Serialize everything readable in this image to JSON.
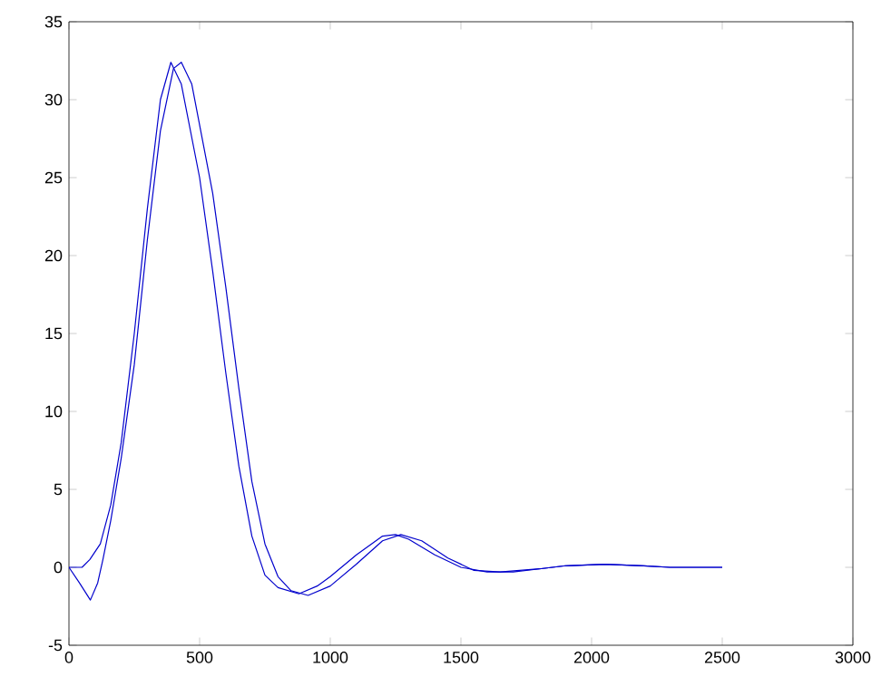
{
  "chart_data": {
    "type": "line",
    "xlim": [
      0,
      3000
    ],
    "ylim": [
      -5,
      35
    ],
    "xticks": [
      0,
      500,
      1000,
      1500,
      2000,
      2500,
      3000
    ],
    "yticks": [
      -5,
      0,
      5,
      10,
      15,
      20,
      25,
      30,
      35
    ],
    "marker": "none",
    "line_style": "solid",
    "series": [
      {
        "color": "#0000cc",
        "x": [
          0,
          50,
          80,
          120,
          160,
          200,
          250,
          300,
          350,
          390,
          430,
          500,
          550,
          600,
          650,
          700,
          750,
          800,
          880,
          950,
          1000,
          1100,
          1200,
          1250,
          1300,
          1400,
          1500,
          1600,
          1700,
          1800,
          1900,
          2050,
          2200,
          2300,
          2500
        ],
        "values": [
          0,
          0,
          0.5,
          1.5,
          4,
          8,
          15,
          23,
          30,
          32.4,
          31,
          25,
          19,
          12.5,
          6.5,
          2,
          -0.5,
          -1.3,
          -1.7,
          -1.2,
          -0.6,
          0.8,
          2,
          2.1,
          1.8,
          0.8,
          0,
          -0.3,
          -0.3,
          -0.1,
          0.1,
          0.2,
          0.1,
          0,
          0
        ]
      },
      {
        "color": "#0000cc",
        "x": [
          0,
          40,
          82,
          110,
          130,
          160,
          200,
          250,
          300,
          350,
          400,
          430,
          470,
          550,
          600,
          650,
          700,
          750,
          800,
          850,
          915,
          1000,
          1100,
          1200,
          1270,
          1350,
          1450,
          1550,
          1650,
          1800,
          1900,
          2050,
          2200,
          2300,
          2500
        ],
        "values": [
          0,
          -1,
          -2.1,
          -1,
          0.5,
          3,
          7,
          13,
          21,
          28,
          32,
          32.4,
          31,
          24,
          18,
          11.5,
          5.5,
          1.5,
          -0.6,
          -1.5,
          -1.8,
          -1.2,
          0.2,
          1.7,
          2.1,
          1.7,
          0.6,
          -0.2,
          -0.3,
          -0.1,
          0.1,
          0.2,
          0.1,
          0,
          0
        ]
      }
    ]
  }
}
